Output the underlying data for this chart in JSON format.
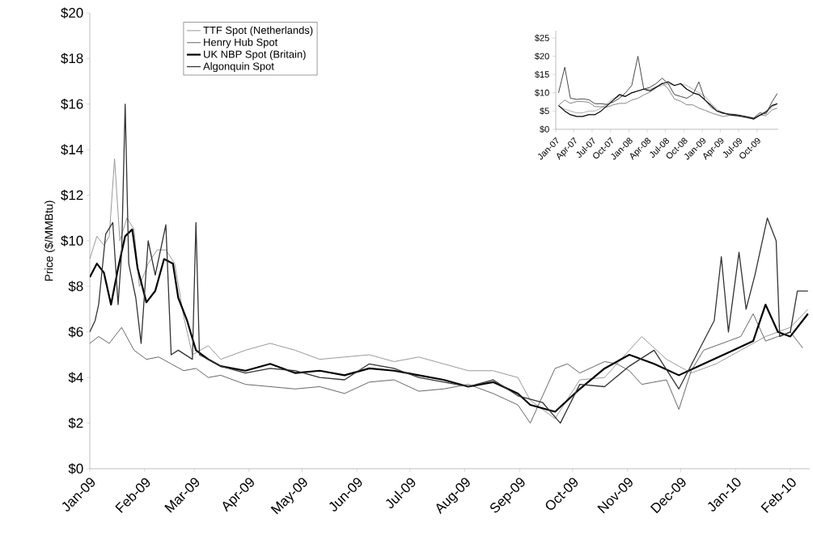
{
  "chart_data": [
    {
      "type": "line",
      "ylabel": "Price ($/MMBtu)",
      "legend": "top left",
      "xlim": [
        "2009-01-01",
        "2010-02-12"
      ],
      "ylim": [
        0,
        20
      ],
      "xticks": [
        {
          "value": "2009-01-01",
          "label": "Jan-09"
        },
        {
          "value": "2009-02-01",
          "label": "Feb-09"
        },
        {
          "value": "2009-03-01",
          "label": "Mar-09"
        },
        {
          "value": "2009-04-01",
          "label": "Apr-09"
        },
        {
          "value": "2009-05-01",
          "label": "May-09"
        },
        {
          "value": "2009-06-01",
          "label": "Jun-09"
        },
        {
          "value": "2009-07-01",
          "label": "Jul-09"
        },
        {
          "value": "2009-08-01",
          "label": "Aug-09"
        },
        {
          "value": "2009-09-01",
          "label": "Sep-09"
        },
        {
          "value": "2009-10-01",
          "label": "Oct-09"
        },
        {
          "value": "2009-11-01",
          "label": "Nov-09"
        },
        {
          "value": "2009-12-01",
          "label": "Dec-09"
        },
        {
          "value": "2010-01-01",
          "label": "Jan-10"
        },
        {
          "value": "2010-02-01",
          "label": "Feb-10"
        }
      ],
      "yticks": [
        {
          "value": 0,
          "label": "$0"
        },
        {
          "value": 2,
          "label": "$2"
        },
        {
          "value": 4,
          "label": "$4"
        },
        {
          "value": 6,
          "label": "$6"
        },
        {
          "value": 8,
          "label": "$8"
        },
        {
          "value": 10,
          "label": "$10"
        },
        {
          "value": 12,
          "label": "$12"
        },
        {
          "value": 14,
          "label": "$14"
        },
        {
          "value": 16,
          "label": "$16"
        },
        {
          "value": 18,
          "label": "$18"
        },
        {
          "value": 20,
          "label": "$20"
        }
      ],
      "series": [
        {
          "name": "TTF Spot (Netherlands)",
          "color": "#999999",
          "x": [
            "2009-01-01",
            "2009-01-05",
            "2009-01-09",
            "2009-01-12",
            "2009-01-15",
            "2009-01-18",
            "2009-01-22",
            "2009-01-26",
            "2009-01-29",
            "2009-02-03",
            "2009-02-08",
            "2009-02-13",
            "2009-02-18",
            "2009-02-23",
            "2009-02-28",
            "2009-03-09",
            "2009-03-16",
            "2009-03-30",
            "2009-04-13",
            "2009-04-27",
            "2009-05-11",
            "2009-05-25",
            "2009-06-08",
            "2009-06-22",
            "2009-07-06",
            "2009-07-20",
            "2009-08-03",
            "2009-08-17",
            "2009-08-31",
            "2009-09-07",
            "2009-09-21",
            "2009-10-05",
            "2009-10-19",
            "2009-11-02",
            "2009-11-09",
            "2009-11-23",
            "2009-12-07",
            "2009-12-21",
            "2010-01-04",
            "2010-01-18",
            "2010-01-25",
            "2010-02-01",
            "2010-02-11"
          ],
          "values": [
            9.2,
            10.2,
            9.8,
            10.2,
            13.6,
            10.0,
            11.0,
            10.5,
            8.0,
            9.0,
            9.6,
            9.6,
            9.0,
            6.7,
            5.0,
            5.4,
            4.8,
            5.2,
            5.5,
            5.2,
            4.8,
            4.9,
            5.0,
            4.7,
            4.9,
            4.6,
            4.3,
            4.3,
            4.0,
            3.0,
            2.2,
            3.9,
            4.0,
            5.2,
            5.8,
            4.8,
            4.2,
            4.6,
            5.2,
            5.8,
            6.0,
            6.2,
            7.0
          ]
        },
        {
          "name": "Henry Hub Spot",
          "color": "#666666",
          "x": [
            "2009-01-01",
            "2009-01-06",
            "2009-01-12",
            "2009-01-19",
            "2009-01-26",
            "2009-02-02",
            "2009-02-09",
            "2009-02-16",
            "2009-02-23",
            "2009-03-02",
            "2009-03-09",
            "2009-03-16",
            "2009-03-23",
            "2009-03-30",
            "2009-04-13",
            "2009-04-27",
            "2009-05-11",
            "2009-05-25",
            "2009-06-08",
            "2009-06-22",
            "2009-07-06",
            "2009-07-20",
            "2009-08-03",
            "2009-08-17",
            "2009-08-31",
            "2009-09-07",
            "2009-09-14",
            "2009-09-21",
            "2009-09-28",
            "2009-10-05",
            "2009-10-19",
            "2009-10-26",
            "2009-11-02",
            "2009-11-09",
            "2009-11-23",
            "2009-11-30",
            "2009-12-07",
            "2009-12-14",
            "2009-12-21",
            "2009-12-28",
            "2010-01-04",
            "2010-01-11",
            "2010-01-18",
            "2010-01-25",
            "2010-02-01",
            "2010-02-08"
          ],
          "values": [
            5.5,
            5.8,
            5.5,
            6.2,
            5.2,
            4.8,
            4.9,
            4.6,
            4.3,
            4.4,
            4.0,
            4.1,
            3.9,
            3.7,
            3.6,
            3.5,
            3.6,
            3.3,
            3.8,
            3.9,
            3.4,
            3.5,
            3.7,
            3.3,
            2.8,
            2.0,
            3.2,
            4.4,
            4.6,
            4.2,
            4.7,
            4.6,
            4.3,
            3.7,
            3.9,
            2.6,
            4.3,
            5.2,
            5.4,
            5.6,
            5.8,
            6.8,
            5.6,
            5.8,
            6.0,
            5.3
          ]
        },
        {
          "name": "UK NBP Spot (Britain)",
          "color": "#000000",
          "x": [
            "2009-01-01",
            "2009-01-05",
            "2009-01-09",
            "2009-01-13",
            "2009-01-17",
            "2009-01-21",
            "2009-01-25",
            "2009-01-28",
            "2009-02-02",
            "2009-02-07",
            "2009-02-12",
            "2009-02-17",
            "2009-02-20",
            "2009-02-25",
            "2009-03-02",
            "2009-03-09",
            "2009-03-16",
            "2009-03-30",
            "2009-04-13",
            "2009-04-27",
            "2009-05-11",
            "2009-05-25",
            "2009-06-08",
            "2009-06-22",
            "2009-07-06",
            "2009-07-20",
            "2009-08-03",
            "2009-08-17",
            "2009-08-31",
            "2009-09-07",
            "2009-09-21",
            "2009-10-05",
            "2009-10-19",
            "2009-11-02",
            "2009-11-16",
            "2009-11-30",
            "2009-12-14",
            "2009-12-28",
            "2010-01-11",
            "2010-01-18",
            "2010-01-25",
            "2010-02-01",
            "2010-02-11"
          ],
          "values": [
            8.4,
            9.0,
            8.6,
            7.2,
            8.8,
            10.2,
            10.5,
            8.8,
            7.3,
            7.8,
            9.2,
            9.0,
            7.5,
            6.5,
            5.2,
            4.8,
            4.5,
            4.3,
            4.6,
            4.2,
            4.3,
            4.1,
            4.4,
            4.3,
            4.1,
            3.9,
            3.6,
            3.8,
            3.3,
            2.8,
            2.5,
            3.5,
            4.4,
            5.0,
            4.6,
            4.1,
            4.6,
            5.1,
            5.6,
            7.2,
            6.0,
            5.8,
            6.8
          ]
        },
        {
          "name": "Algonquin Spot",
          "color": "#333333",
          "x": [
            "2009-01-01",
            "2009-01-04",
            "2009-01-06",
            "2009-01-10",
            "2009-01-14",
            "2009-01-17",
            "2009-01-19",
            "2009-01-21",
            "2009-01-23",
            "2009-01-27",
            "2009-01-30",
            "2009-02-03",
            "2009-02-07",
            "2009-02-13",
            "2009-02-16",
            "2009-02-20",
            "2009-02-28",
            "2009-03-02",
            "2009-03-04",
            "2009-03-16",
            "2009-03-30",
            "2009-04-13",
            "2009-04-27",
            "2009-05-11",
            "2009-05-25",
            "2009-06-08",
            "2009-06-22",
            "2009-07-06",
            "2009-07-20",
            "2009-08-03",
            "2009-08-17",
            "2009-08-31",
            "2009-09-14",
            "2009-09-24",
            "2009-10-05",
            "2009-10-19",
            "2009-11-02",
            "2009-11-16",
            "2009-11-30",
            "2009-12-10",
            "2009-12-20",
            "2009-12-24",
            "2009-12-28",
            "2010-01-03",
            "2010-01-07",
            "2010-01-12",
            "2010-01-19",
            "2010-01-24",
            "2010-01-26",
            "2010-02-01",
            "2010-02-05",
            "2010-02-11"
          ],
          "values": [
            6.0,
            6.5,
            7.2,
            10.3,
            10.8,
            7.2,
            9.5,
            16.0,
            9.0,
            7.5,
            5.5,
            10.0,
            8.5,
            10.7,
            5.0,
            5.2,
            4.8,
            10.8,
            5.0,
            4.5,
            4.2,
            4.4,
            4.3,
            4.0,
            3.9,
            4.6,
            4.4,
            4.0,
            3.8,
            3.6,
            3.9,
            3.2,
            2.9,
            2.0,
            3.7,
            3.6,
            4.5,
            5.2,
            3.5,
            5.0,
            6.5,
            9.3,
            6.0,
            9.5,
            7.0,
            8.5,
            11.0,
            10.0,
            5.8,
            6.0,
            7.8,
            7.8
          ]
        }
      ]
    },
    {
      "type": "line",
      "xlim": [
        "2007-01-01",
        "2010-01-15"
      ],
      "ylim": [
        0,
        27
      ],
      "xticks": [
        {
          "value": "2007-01-01",
          "label": "Jan-07"
        },
        {
          "value": "2007-04-01",
          "label": "Apr-07"
        },
        {
          "value": "2007-07-01",
          "label": "Jul-07"
        },
        {
          "value": "2007-10-01",
          "label": "Oct-07"
        },
        {
          "value": "2008-01-01",
          "label": "Jan-08"
        },
        {
          "value": "2008-04-01",
          "label": "Apr-08"
        },
        {
          "value": "2008-07-01",
          "label": "Jul-08"
        },
        {
          "value": "2008-10-01",
          "label": "Oct-08"
        },
        {
          "value": "2009-01-01",
          "label": "Jan-09"
        },
        {
          "value": "2009-04-01",
          "label": "Apr-09"
        },
        {
          "value": "2009-07-01",
          "label": "Jul-09"
        },
        {
          "value": "2009-10-01",
          "label": "Oct-09"
        }
      ],
      "yticks": [
        {
          "value": 0,
          "label": "$0"
        },
        {
          "value": 5,
          "label": "$5"
        },
        {
          "value": 10,
          "label": "$10"
        },
        {
          "value": 15,
          "label": "$15"
        },
        {
          "value": 20,
          "label": "$20"
        },
        {
          "value": 25,
          "label": "$25"
        }
      ],
      "x": [
        "2007-01-15",
        "2007-02-15",
        "2007-03-15",
        "2007-04-15",
        "2007-05-15",
        "2007-06-15",
        "2007-07-15",
        "2007-08-15",
        "2007-09-15",
        "2007-10-15",
        "2007-11-15",
        "2007-12-15",
        "2008-01-15",
        "2008-02-15",
        "2008-03-15",
        "2008-04-15",
        "2008-05-15",
        "2008-06-15",
        "2008-07-15",
        "2008-08-15",
        "2008-09-15",
        "2008-10-15",
        "2008-11-15",
        "2008-12-15",
        "2009-01-15",
        "2009-02-15",
        "2009-03-15",
        "2009-04-15",
        "2009-05-15",
        "2009-06-15",
        "2009-07-15",
        "2009-08-15",
        "2009-09-15",
        "2009-10-15",
        "2009-11-15",
        "2009-12-15",
        "2010-01-10"
      ],
      "series": [
        {
          "color": "#999999",
          "values": [
            6.5,
            5.5,
            5.0,
            4.5,
            4.5,
            5.0,
            5.0,
            5.8,
            7.0,
            8.5,
            9.0,
            9.0,
            10.0,
            10.5,
            11.0,
            11.0,
            11.5,
            12.0,
            12.5,
            12.0,
            12.5,
            12.0,
            11.0,
            10.0,
            9.0,
            7.0,
            5.5,
            4.5,
            4.2,
            4.0,
            3.7,
            3.5,
            3.0,
            3.8,
            4.5,
            6.0,
            7.0
          ]
        },
        {
          "color": "#666666",
          "values": [
            6.6,
            8.0,
            7.1,
            7.6,
            7.6,
            7.4,
            6.2,
            6.2,
            6.1,
            6.7,
            7.1,
            7.1,
            8.0,
            8.5,
            9.4,
            10.2,
            11.3,
            12.7,
            11.1,
            8.3,
            7.7,
            6.7,
            6.7,
            5.8,
            5.2,
            4.5,
            4.0,
            3.5,
            3.8,
            3.8,
            3.4,
            3.1,
            3.0,
            4.0,
            3.7,
            5.3,
            5.8
          ]
        },
        {
          "color": "#000000",
          "values": [
            6.5,
            5.0,
            4.0,
            3.5,
            3.5,
            4.0,
            4.0,
            5.0,
            6.5,
            8.0,
            9.5,
            9.0,
            10.0,
            10.5,
            11.0,
            10.5,
            11.5,
            12.5,
            13.0,
            12.0,
            12.5,
            11.0,
            10.0,
            9.5,
            8.0,
            6.5,
            5.0,
            4.5,
            4.0,
            3.8,
            3.6,
            3.3,
            2.8,
            3.8,
            4.8,
            6.5,
            7.0
          ]
        },
        {
          "color": "#333333",
          "values": [
            10.0,
            17.0,
            8.5,
            8.2,
            8.3,
            8.1,
            7.0,
            7.0,
            6.8,
            7.5,
            8.5,
            10.0,
            12.0,
            20.0,
            11.0,
            11.5,
            12.5,
            14.0,
            12.5,
            9.5,
            9.0,
            8.5,
            9.5,
            13.0,
            8.0,
            6.0,
            5.0,
            4.3,
            4.2,
            4.1,
            3.8,
            3.4,
            3.1,
            4.5,
            4.2,
            7.5,
            9.8
          ]
        }
      ]
    }
  ]
}
